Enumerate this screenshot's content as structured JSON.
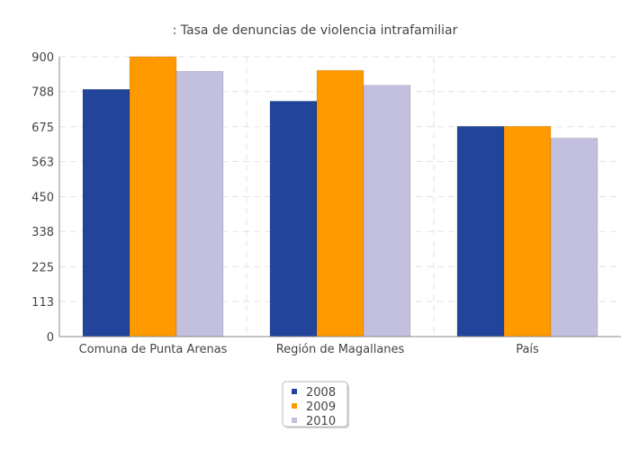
{
  "chart_data": {
    "type": "bar",
    "title": ": Tasa de denuncias de violencia intrafamiliar",
    "categories": [
      "Comuna de Punta Arenas",
      "Región de Magallanes",
      "País"
    ],
    "series": [
      {
        "name": "2008",
        "color": "#22449a",
        "values": [
          795,
          757,
          676
        ]
      },
      {
        "name": "2009",
        "color": "#ff9900",
        "values": [
          900,
          856,
          676
        ]
      },
      {
        "name": "2010",
        "color": "#c2bfdf",
        "values": [
          853,
          808,
          638
        ]
      }
    ],
    "y_ticks": [
      "0",
      "113",
      "225",
      "338",
      "450",
      "563",
      "675",
      "788",
      "900"
    ],
    "ylim": [
      0,
      900
    ],
    "grid": true,
    "legend_position": "bottom-center"
  }
}
